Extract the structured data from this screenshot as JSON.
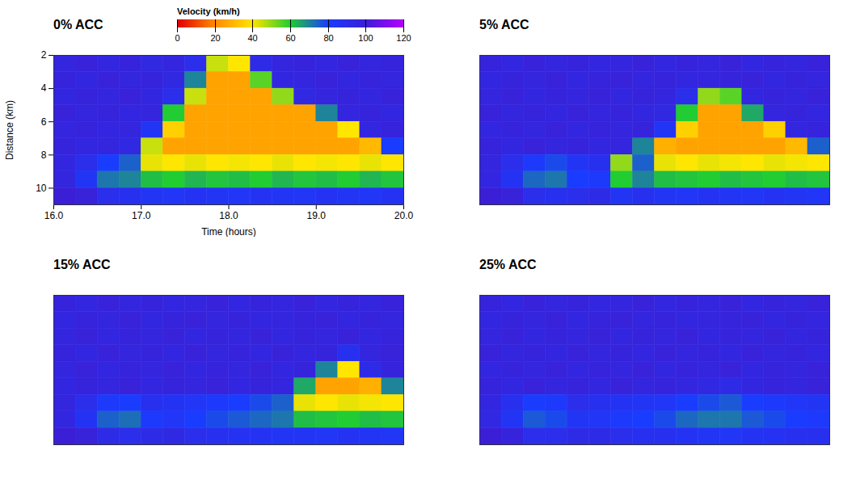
{
  "chart_data": [
    {
      "type": "heatmap",
      "title": "0% ACC",
      "xlabel": "Time (hours)",
      "ylabel": "Distance (km)",
      "xlim": [
        16,
        20
      ],
      "ylim": [
        2,
        11
      ],
      "xticks": [
        16,
        17,
        18,
        19,
        20
      ],
      "yticks": [
        2,
        4,
        6,
        8,
        10
      ],
      "x_edges": [
        16,
        16.25,
        16.5,
        16.75,
        17,
        17.25,
        17.5,
        17.75,
        18,
        18.25,
        18.5,
        18.75,
        19,
        19.25,
        19.5,
        19.75,
        20
      ],
      "y_edges": [
        2,
        3,
        4,
        5,
        6,
        7,
        8,
        9,
        10,
        11
      ],
      "cells": [
        [
          96,
          98,
          95,
          97,
          94,
          96,
          90,
          45,
          40,
          92,
          96,
          97,
          95,
          98,
          96,
          97
        ],
        [
          97,
          95,
          98,
          96,
          97,
          94,
          70,
          25,
          25,
          55,
          95,
          96,
          98,
          95,
          97,
          96
        ],
        [
          95,
          97,
          96,
          98,
          95,
          90,
          45,
          25,
          25,
          25,
          50,
          94,
          96,
          97,
          95,
          98
        ],
        [
          98,
          96,
          97,
          95,
          96,
          60,
          25,
          25,
          25,
          25,
          25,
          25,
          70,
          96,
          97,
          95
        ],
        [
          96,
          97,
          95,
          96,
          85,
          35,
          25,
          25,
          25,
          25,
          25,
          25,
          25,
          40,
          95,
          97
        ],
        [
          97,
          95,
          96,
          94,
          45,
          25,
          25,
          25,
          25,
          25,
          25,
          25,
          25,
          25,
          30,
          80
        ],
        [
          95,
          90,
          80,
          75,
          42,
          40,
          42,
          40,
          41,
          40,
          42,
          40,
          41,
          40,
          42,
          40
        ],
        [
          96,
          85,
          72,
          70,
          62,
          60,
          63,
          61,
          62,
          60,
          63,
          61,
          62,
          60,
          63,
          61
        ],
        [
          100,
          98,
          90,
          88,
          85,
          84,
          86,
          85,
          84,
          86,
          85,
          84,
          86,
          85,
          84,
          86
        ]
      ],
      "colorbar": {
        "label": "Velocity (km/h)",
        "ticks": [
          0,
          20,
          40,
          60,
          80,
          100,
          120
        ]
      }
    },
    {
      "type": "heatmap",
      "title": "5% ACC",
      "tick_labels": false,
      "xlim": [
        16,
        20
      ],
      "ylim": [
        2,
        11
      ],
      "x_edges": [
        16,
        16.25,
        16.5,
        16.75,
        17,
        17.25,
        17.5,
        17.75,
        18,
        18.25,
        18.5,
        18.75,
        19,
        19.25,
        19.5,
        19.75,
        20
      ],
      "y_edges": [
        2,
        3,
        4,
        5,
        6,
        7,
        8,
        9,
        10,
        11
      ],
      "cells": [
        [
          97,
          95,
          98,
          96,
          97,
          95,
          96,
          98,
          95,
          97,
          96,
          98,
          95,
          97,
          96,
          98
        ],
        [
          95,
          97,
          96,
          98,
          95,
          97,
          98,
          96,
          97,
          95,
          96,
          97,
          98,
          95,
          97,
          96
        ],
        [
          96,
          98,
          95,
          97,
          96,
          98,
          95,
          97,
          96,
          90,
          50,
          55,
          95,
          97,
          96,
          98
        ],
        [
          98,
          96,
          97,
          95,
          98,
          96,
          97,
          95,
          94,
          60,
          25,
          25,
          65,
          96,
          97,
          95
        ],
        [
          95,
          97,
          96,
          98,
          95,
          97,
          96,
          97,
          85,
          35,
          25,
          25,
          25,
          35,
          95,
          97
        ],
        [
          97,
          95,
          98,
          96,
          97,
          95,
          96,
          70,
          28,
          25,
          25,
          25,
          25,
          25,
          30,
          75
        ],
        [
          96,
          90,
          82,
          78,
          85,
          88,
          50,
          75,
          42,
          40,
          42,
          41,
          40,
          42,
          41,
          40
        ],
        [
          95,
          86,
          74,
          72,
          80,
          82,
          60,
          70,
          62,
          61,
          60,
          62,
          61,
          60,
          62,
          61
        ],
        [
          100,
          98,
          90,
          88,
          90,
          92,
          85,
          88,
          85,
          84,
          86,
          85,
          84,
          86,
          85,
          84
        ]
      ]
    },
    {
      "type": "heatmap",
      "title": "15% ACC",
      "tick_labels": false,
      "xlim": [
        16,
        20
      ],
      "ylim": [
        2,
        11
      ],
      "x_edges": [
        16,
        16.25,
        16.5,
        16.75,
        17,
        17.25,
        17.5,
        17.75,
        18,
        18.25,
        18.5,
        18.75,
        19,
        19.25,
        19.5,
        19.75,
        20
      ],
      "y_edges": [
        2,
        3,
        4,
        5,
        6,
        7,
        8,
        9,
        10,
        11
      ],
      "cells": [
        [
          97,
          95,
          98,
          96,
          97,
          95,
          96,
          98,
          95,
          97,
          96,
          98,
          95,
          97,
          96,
          98
        ],
        [
          95,
          97,
          96,
          98,
          95,
          97,
          98,
          96,
          97,
          95,
          96,
          97,
          98,
          95,
          97,
          96
        ],
        [
          96,
          98,
          95,
          97,
          96,
          98,
          95,
          97,
          96,
          98,
          95,
          97,
          96,
          98,
          95,
          97
        ],
        [
          97,
          95,
          98,
          96,
          97,
          95,
          98,
          96,
          97,
          95,
          98,
          96,
          97,
          88,
          96,
          98
        ],
        [
          96,
          98,
          95,
          97,
          96,
          98,
          95,
          97,
          96,
          98,
          95,
          97,
          70,
          40,
          92,
          97
        ],
        [
          95,
          97,
          96,
          98,
          95,
          97,
          96,
          98,
          95,
          97,
          96,
          65,
          25,
          25,
          28,
          70
        ],
        [
          96,
          90,
          82,
          80,
          88,
          86,
          84,
          82,
          80,
          78,
          75,
          42,
          40,
          42,
          41,
          40
        ],
        [
          95,
          86,
          75,
          73,
          82,
          84,
          80,
          78,
          76,
          74,
          72,
          62,
          61,
          60,
          62,
          61
        ],
        [
          100,
          98,
          92,
          90,
          92,
          93,
          90,
          88,
          87,
          86,
          85,
          85,
          84,
          86,
          85,
          84
        ]
      ]
    },
    {
      "type": "heatmap",
      "title": "25% ACC",
      "tick_labels": false,
      "xlim": [
        16,
        20
      ],
      "ylim": [
        2,
        11
      ],
      "x_edges": [
        16,
        16.25,
        16.5,
        16.75,
        17,
        17.25,
        17.5,
        17.75,
        18,
        18.25,
        18.5,
        18.75,
        19,
        19.25,
        19.5,
        19.75,
        20
      ],
      "y_edges": [
        2,
        3,
        4,
        5,
        6,
        7,
        8,
        9,
        10,
        11
      ],
      "cells": [
        [
          97,
          95,
          98,
          96,
          97,
          95,
          96,
          98,
          95,
          97,
          96,
          98,
          95,
          97,
          96,
          98
        ],
        [
          95,
          97,
          96,
          98,
          95,
          97,
          98,
          96,
          97,
          95,
          96,
          97,
          98,
          95,
          97,
          96
        ],
        [
          96,
          98,
          95,
          97,
          96,
          98,
          95,
          97,
          96,
          98,
          95,
          97,
          96,
          98,
          95,
          97
        ],
        [
          98,
          96,
          97,
          95,
          98,
          96,
          97,
          95,
          98,
          96,
          97,
          95,
          98,
          96,
          97,
          95
        ],
        [
          95,
          97,
          96,
          98,
          95,
          97,
          96,
          98,
          95,
          97,
          96,
          98,
          95,
          97,
          96,
          98
        ],
        [
          97,
          95,
          98,
          96,
          97,
          95,
          98,
          96,
          97,
          95,
          94,
          92,
          95,
          97,
          96,
          98
        ],
        [
          95,
          88,
          80,
          82,
          90,
          88,
          86,
          85,
          84,
          80,
          78,
          76,
          80,
          82,
          84,
          85
        ],
        [
          94,
          85,
          76,
          78,
          85,
          84,
          82,
          80,
          78,
          74,
          72,
          72,
          76,
          78,
          80,
          82
        ],
        [
          100,
          97,
          90,
          90,
          92,
          92,
          90,
          88,
          88,
          86,
          85,
          84,
          86,
          87,
          88,
          88
        ]
      ]
    }
  ]
}
